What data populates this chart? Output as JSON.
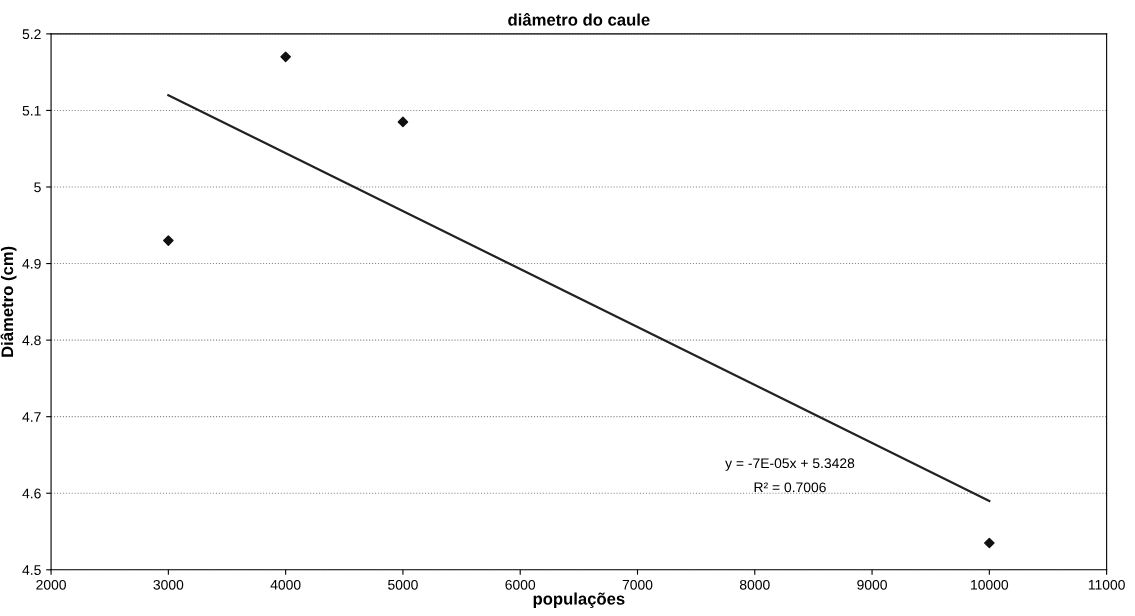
{
  "chart_data": {
    "type": "scatter",
    "title": "diâmetro do caule",
    "xlabel": "populações",
    "ylabel": "Diâmetro (cm)",
    "series": [
      {
        "color": "#111111",
        "x": [
          3000,
          4000,
          5000,
          10000
        ],
        "values": [
          4.93,
          5.17,
          5.085,
          4.535
        ],
        "marker": "diamond"
      },
      {
        "type": "line",
        "color": "#222222",
        "x": [
          3000,
          10000
        ],
        "values": [
          5.12,
          4.59
        ],
        "marker": "none",
        "line_style": "solid"
      }
    ],
    "xlim": [
      2000,
      11000
    ],
    "xticks": [
      2000,
      3000,
      4000,
      5000,
      6000,
      7000,
      8000,
      9000,
      10000,
      11000
    ],
    "ylim": [
      4.5,
      5.2
    ],
    "yticks": [
      4.5,
      4.6,
      4.7,
      4.8,
      4.9,
      5,
      5.1,
      5.2
    ],
    "grid": "y",
    "legend": false,
    "annotations": [
      "y = -7E-05x + 5.3428",
      "R² = 0.7006"
    ]
  }
}
